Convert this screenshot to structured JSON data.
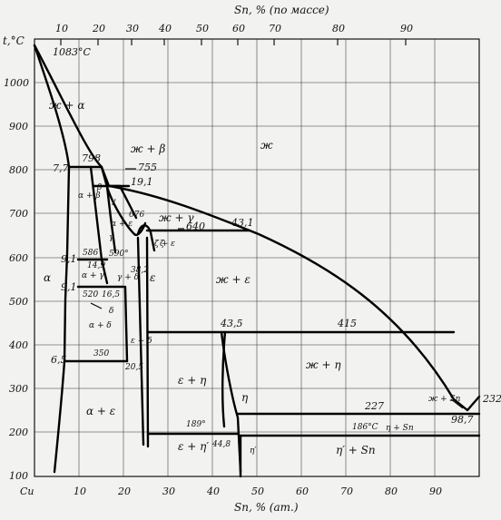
{
  "diagram": {
    "top_axis": {
      "title": "Sn, % (по массе)",
      "ticks": [
        "10",
        "20",
        "30",
        "40",
        "50",
        "60",
        "70",
        "80",
        "90"
      ]
    },
    "bottom_axis": {
      "title": "Sn, % (ат.)",
      "origin": "Cu",
      "ticks": [
        "10",
        "20",
        "30",
        "40",
        "50",
        "60",
        "70",
        "80",
        "90"
      ]
    },
    "left_axis": {
      "title": "t,°C",
      "ticks": [
        "1000",
        "900",
        "800",
        "700",
        "600",
        "500",
        "400",
        "300",
        "200",
        "100"
      ]
    },
    "temperatures": [
      "1083°С",
      "798",
      "755",
      "676",
      "640",
      "590°",
      "586",
      "520",
      "415",
      "350",
      "227",
      "232",
      "189°",
      "186°С"
    ],
    "compositions": [
      "7,7",
      "19,1",
      "43,1",
      "9,1",
      "14,9",
      "9,1",
      "16,5",
      "6,5",
      "20,5",
      "43,5",
      "44,8",
      "98,7",
      "38,2"
    ],
    "phases": [
      "ж + α",
      "ж",
      "ж + β",
      "α + β",
      "β",
      "γ",
      "α + ε",
      "ж + γ",
      "γ",
      "ζ",
      "ζ + ε",
      "α + γ",
      "α",
      "γ + δ",
      "δ",
      "ε",
      "ж + ε",
      "α + δ",
      "ε + δ",
      "ε + η",
      "ж + η",
      "η",
      "ж + Sn",
      "α + ε",
      "ε + η′",
      "η′",
      "η + Sn",
      "η′ + Sn"
    ]
  }
}
